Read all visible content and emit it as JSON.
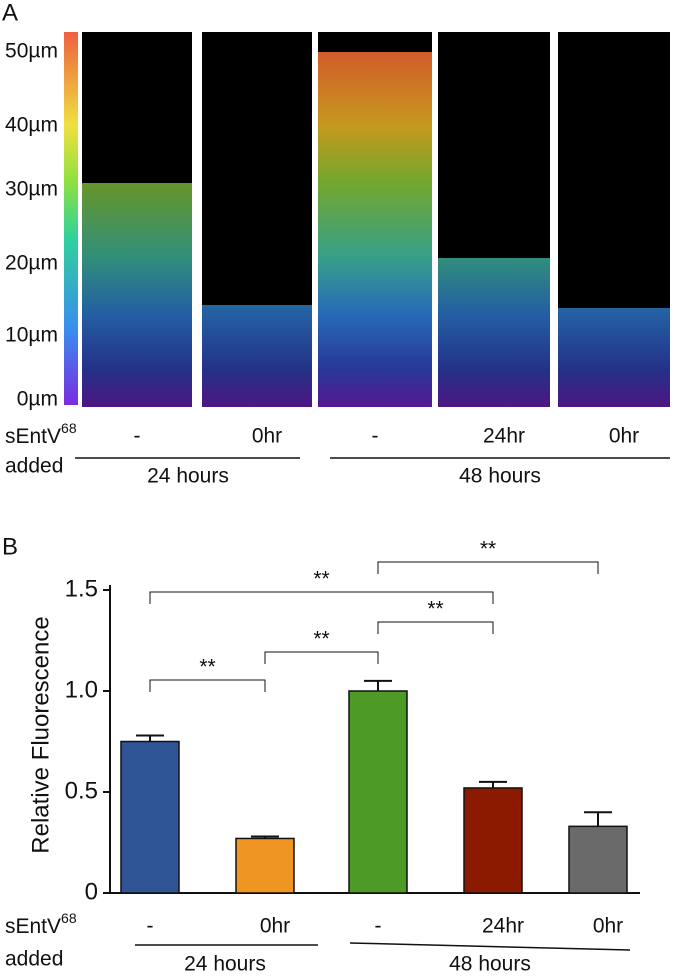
{
  "panel_a": {
    "label": "A",
    "scale_labels": [
      "50µm",
      "40µm",
      "30µm",
      "20µm",
      "10µm",
      "0µm"
    ],
    "row_label": {
      "text": "sEntV",
      "sup": "68",
      "line2": "added"
    },
    "conditions": [
      "-",
      "0hr",
      "-",
      "24hr",
      "0hr"
    ],
    "groups": [
      "24 hours",
      "48 hours"
    ]
  },
  "chart_data": {
    "type": "bar",
    "panel_label": "B",
    "ylabel": "Relative Fluorescence",
    "categories": [
      "-",
      "0hr",
      "-",
      "24hr",
      "0hr"
    ],
    "values": [
      0.75,
      0.27,
      1.0,
      0.52,
      0.33
    ],
    "errors": [
      0.03,
      0.01,
      0.05,
      0.03,
      0.07
    ],
    "colors": [
      "#2f5597",
      "#ee9522",
      "#4e9a26",
      "#8b1a00",
      "#6a6a6a"
    ],
    "ylim": [
      0,
      1.5
    ],
    "yticks": [
      0,
      0.5,
      {
        "value": 1,
        "label": "1.0"
      },
      1.5
    ],
    "annotations": [
      {
        "text": "**",
        "from": 0,
        "to": 1
      },
      {
        "text": "**",
        "from": 1,
        "to": 2
      },
      {
        "text": "**",
        "from": 2,
        "to": 3
      },
      {
        "text": "**",
        "from": 0,
        "to": 3
      },
      {
        "text": "**",
        "from": 2,
        "to": 4
      }
    ],
    "row_label": {
      "text": "sEntV",
      "sup": "68",
      "line2": "added"
    },
    "groups": [
      "24 hours",
      "48 hours"
    ]
  }
}
